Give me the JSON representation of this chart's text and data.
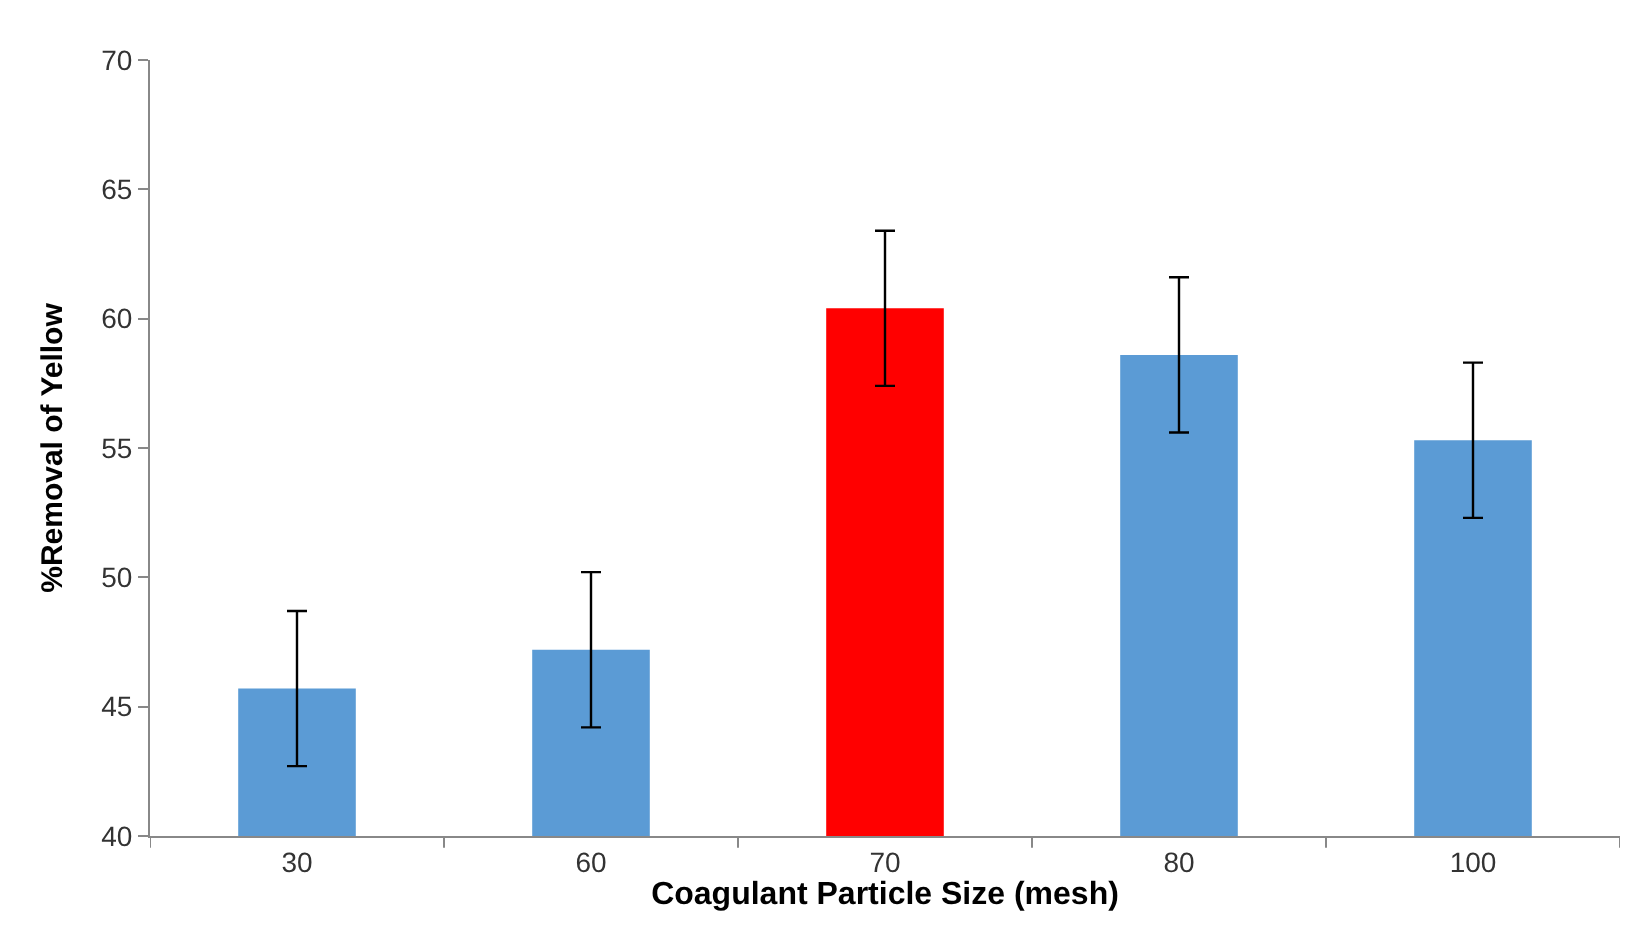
{
  "chart_data": {
    "type": "bar",
    "xlabel": "Coagulant Particle Size (mesh)",
    "ylabel": "%Removal of Yellow",
    "categories": [
      "30",
      "60",
      "70",
      "80",
      "100"
    ],
    "values": [
      45.7,
      47.2,
      60.4,
      58.6,
      55.3
    ],
    "colors": [
      "#5b9bd5",
      "#5b9bd5",
      "#ff0000",
      "#5b9bd5",
      "#5b9bd5"
    ],
    "errors": [
      3,
      3,
      3,
      3,
      3
    ],
    "ylim": [
      40,
      70
    ],
    "yticks": [
      40,
      45,
      50,
      55,
      60,
      65,
      70
    ],
    "legend": false
  }
}
